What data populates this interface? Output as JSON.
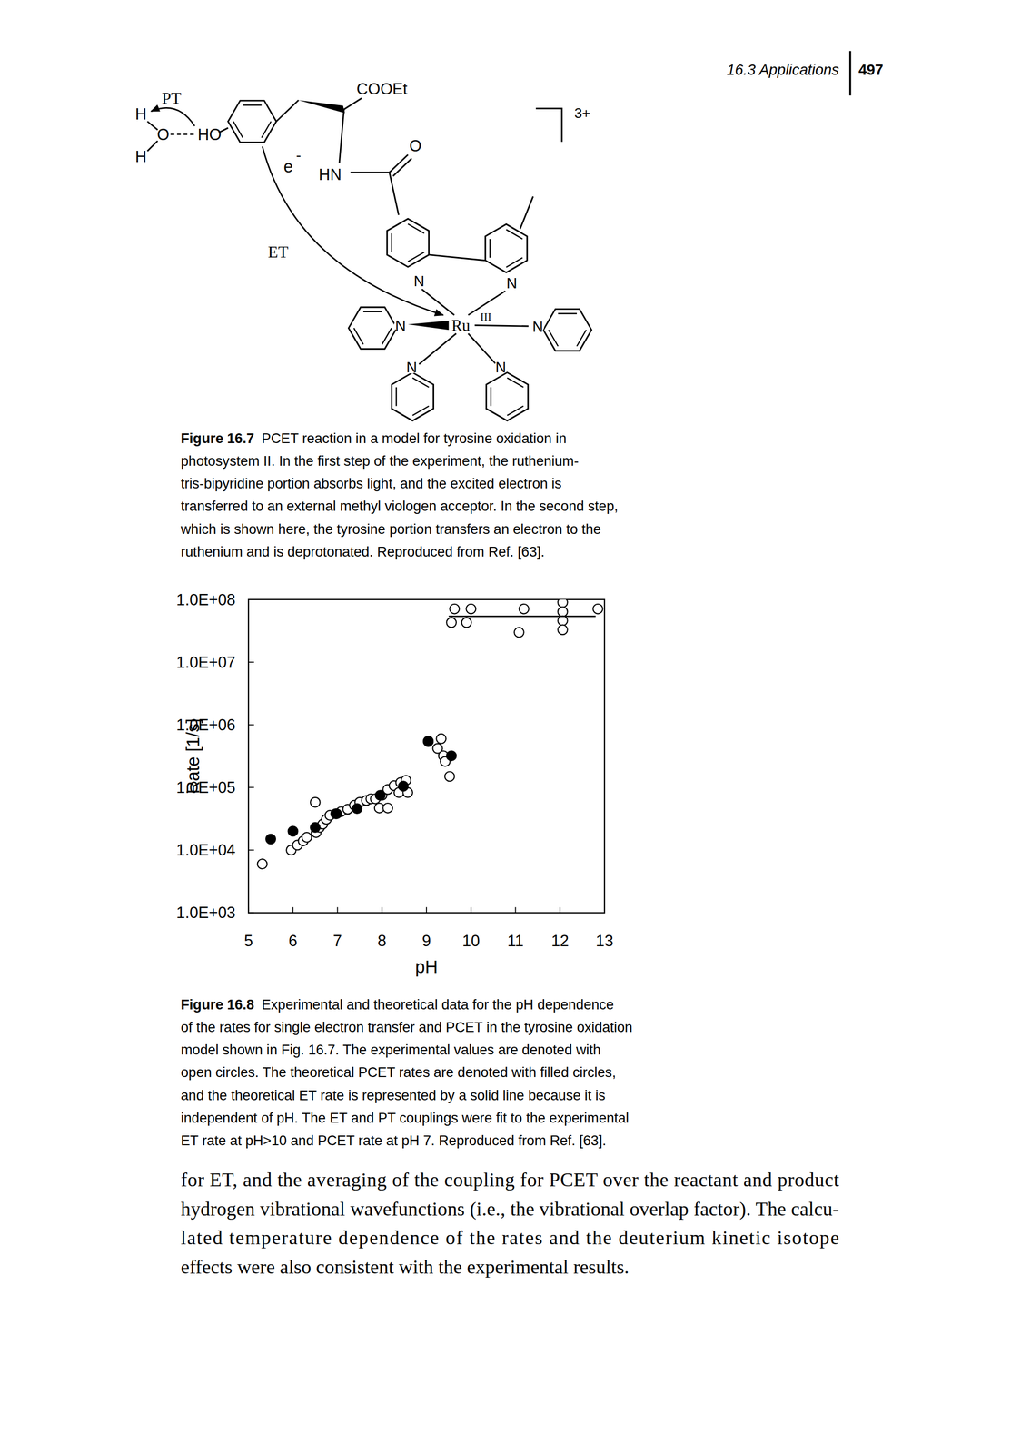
{
  "header": {
    "section": "16.3 Applications",
    "page": "497"
  },
  "figure_16_7": {
    "labels": [
      "PT",
      "H",
      "O",
      "HO",
      "H",
      "COOEt",
      "O",
      "HN",
      "e",
      "-",
      "ET",
      "N",
      "N",
      "N",
      "N",
      "N",
      "N",
      "Ru",
      "III",
      "3+"
    ]
  },
  "figure_16_7_caption": {
    "label": "Figure 16.7",
    "lines": [
      "PCET reaction in a model for tyrosine oxidation in",
      "photosystem II. In the first step of the experiment, the ruthenium-",
      "tris-bipyridine portion absorbs light, and the excited electron is",
      "transferred to an external methyl viologen acceptor. In the second step,",
      "which is shown here, the tyrosine portion transfers an electron to the",
      "ruthenium and is deprotonated. Reproduced from Ref. [63]."
    ]
  },
  "chart_data": {
    "type": "scatter",
    "x_label": "pH",
    "y_label": "Rate [1/s]",
    "log": "y",
    "xlim": [
      5,
      13
    ],
    "ylim": [
      1000,
      100000000
    ],
    "xticks": [
      5,
      6,
      7,
      8,
      9,
      10,
      11,
      12,
      13
    ],
    "yticks": [
      {
        "value": 1000,
        "label": "1.0E+03"
      },
      {
        "value": 10000,
        "label": "1.0E+04"
      },
      {
        "value": 100000,
        "label": "1.0E+05"
      },
      {
        "value": 1000000,
        "label": "1.0E+06"
      },
      {
        "value": 10000000,
        "label": "1.0E+07"
      },
      {
        "value": 100000000,
        "label": "1.0E+08"
      }
    ],
    "series": [
      {
        "marker": "open-circle",
        "color": "#000000",
        "x": [
          5.31,
          5.96,
          6.1,
          6.23,
          6.31,
          6.5,
          6.52,
          6.6,
          6.67,
          6.75,
          6.83,
          6.96,
          7.08,
          7.23,
          7.38,
          7.5,
          7.65,
          7.75,
          7.85,
          7.94,
          8.13,
          8.0,
          8.13,
          8.27,
          8.42,
          8.54,
          8.38,
          8.58,
          9.04,
          9.25,
          9.38,
          9.42,
          9.52,
          9.33,
          9.63,
          10.0,
          9.56,
          9.9,
          11.19,
          11.08,
          12.06,
          12.06,
          12.06,
          12.06,
          12.85
        ],
        "values": [
          6000,
          10000,
          12000,
          14000,
          16000,
          58000,
          19000,
          23000,
          26000,
          31000,
          36000,
          38000,
          41000,
          45000,
          52000,
          58000,
          62000,
          66000,
          66000,
          47000,
          47000,
          75000,
          93000,
          107000,
          120000,
          130000,
          83000,
          83000,
          550000,
          420000,
          320000,
          260000,
          150000,
          600000,
          71000000,
          71000000,
          43000000,
          43000000,
          71000000,
          30000000,
          90000000,
          64000000,
          46000000,
          33000000,
          71000000
        ]
      },
      {
        "marker": "filled-circle",
        "color": "#000000",
        "x": [
          5.5,
          6.0,
          6.5,
          6.98,
          7.44,
          7.96,
          8.48,
          9.04,
          9.56
        ],
        "values": [
          15000,
          20000,
          23000,
          38000,
          46000,
          75000,
          105000,
          540000,
          320000
        ]
      },
      {
        "type": "line",
        "line_style": "solid",
        "color": "#000000",
        "x": [
          9.5,
          12.8
        ],
        "values": [
          54000000,
          54000000
        ]
      }
    ]
  },
  "figure_16_8_caption": {
    "label": "Figure 16.8",
    "lines": [
      "Experimental and theoretical data for the pH dependence",
      "of the rates for single electron transfer and PCET in the tyrosine oxidation",
      "model shown in Fig. 16.7. The experimental values are denoted with",
      "open circles. The theoretical PCET rates are denoted with filled circles,",
      "and the theoretical ET rate is represented by a solid line because it is",
      "independent of pH. The ET and PT couplings were fit to the experimental",
      "ET rate at pH>10 and PCET rate at pH 7. Reproduced from Ref. [63]."
    ]
  },
  "body": {
    "lines": [
      "for ET, and the averaging of the coupling for PCET over the reactant and product",
      "hydrogen vibrational wavefunctions (i.e., the vibrational overlap factor). The calcu-",
      "lated temperature dependence of the rates and the deuterium kinetic isotope",
      "effects were also consistent with the experimental results."
    ]
  }
}
